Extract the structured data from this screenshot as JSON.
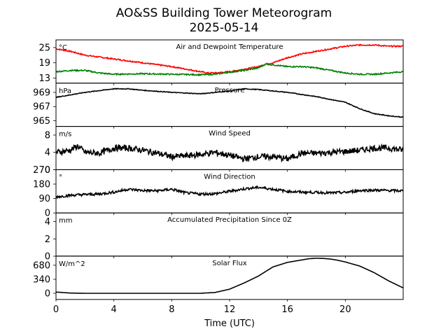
{
  "figure": {
    "title_line1": "AO&SS Building Tower Meteorogram",
    "title_line2": "2025-05-14",
    "xlabel": "Time (UTC)",
    "x_ticks": [
      0,
      4,
      8,
      12,
      16,
      20
    ],
    "xlim": [
      0,
      24
    ]
  },
  "chart_data": [
    {
      "type": "line",
      "title": "Air and Dewpoint Temperature",
      "unit_label": "°C",
      "ylim": [
        11,
        28
      ],
      "y_ticks": [
        13,
        19,
        25
      ],
      "series": [
        {
          "color": "#ff0000",
          "x": [
            0,
            1,
            2,
            4,
            6,
            8,
            9,
            10,
            10.5,
            11,
            12,
            13,
            14,
            14.5,
            15,
            16,
            17,
            18,
            19,
            20,
            21,
            22,
            23,
            24
          ],
          "y": [
            24.5,
            23.5,
            22,
            20.5,
            19,
            17.5,
            16.5,
            15.5,
            15,
            15,
            15.5,
            16.5,
            17.5,
            18.5,
            19,
            21,
            22.5,
            23.5,
            24.5,
            25.5,
            26,
            26,
            25.5,
            25.5
          ]
        },
        {
          "color": "#008000",
          "x": [
            0,
            1,
            2,
            3,
            4,
            6,
            8,
            10,
            11,
            12,
            13,
            14,
            14.5,
            15,
            16,
            17,
            18,
            19,
            20,
            21,
            22,
            23,
            24
          ],
          "y": [
            15.5,
            16,
            16,
            15,
            14.5,
            14.7,
            14.5,
            14.3,
            14.5,
            15.3,
            16,
            17,
            18.5,
            18.2,
            17.5,
            17.5,
            17,
            16,
            15,
            14.5,
            14.5,
            15,
            15.5
          ]
        }
      ],
      "noise": 0.25
    },
    {
      "type": "line",
      "title": "Pressure",
      "unit_label": "hPa",
      "ylim": [
        964.2,
        970.3
      ],
      "y_ticks": [
        965,
        967,
        969
      ],
      "series": [
        {
          "color": "#000000",
          "x": [
            0,
            2,
            4,
            5,
            6,
            8,
            10,
            12,
            13,
            14,
            15,
            16,
            17,
            18,
            19,
            20,
            21,
            22,
            23,
            24
          ],
          "y": [
            968.3,
            969,
            969.5,
            969.5,
            969.3,
            969,
            968.8,
            969.2,
            969.5,
            969.4,
            969.2,
            969,
            968.7,
            968.4,
            968,
            967.6,
            966.7,
            966,
            965.7,
            965.5
          ]
        }
      ],
      "noise": 0.05
    },
    {
      "type": "line",
      "title": "Wind Speed",
      "unit_label": "m/s",
      "ylim": [
        0,
        10
      ],
      "y_ticks": [
        0,
        4,
        8
      ],
      "series": [
        {
          "color": "#000000",
          "x": [
            0,
            1,
            1.5,
            2,
            3,
            4,
            5,
            6,
            7,
            8,
            9,
            10,
            11,
            12,
            13,
            14,
            15,
            16,
            17,
            18,
            19,
            20,
            21,
            22,
            23,
            24
          ],
          "y": [
            4,
            4.5,
            5.5,
            4,
            3.8,
            5,
            5,
            4.5,
            3.8,
            3,
            3.2,
            3.5,
            4,
            3.3,
            2.5,
            3,
            3,
            2.5,
            3.8,
            3.8,
            4,
            4.2,
            4.5,
            5,
            5,
            4.5
          ]
        }
      ],
      "noise": 0.7
    },
    {
      "type": "line",
      "title": "Wind Direction",
      "unit_label": "°",
      "ylim": [
        0,
        270
      ],
      "y_ticks": [
        0,
        90,
        180,
        270
      ],
      "series": [
        {
          "color": "#000000",
          "x": [
            0,
            1,
            2,
            3,
            4,
            5,
            6,
            7,
            8,
            9,
            10,
            11,
            12,
            13,
            14,
            15,
            16,
            17,
            18,
            19,
            20,
            21,
            22,
            23,
            24
          ],
          "y": [
            100,
            110,
            115,
            118,
            130,
            148,
            140,
            138,
            148,
            125,
            118,
            120,
            135,
            150,
            160,
            148,
            135,
            130,
            128,
            125,
            128,
            140,
            142,
            140,
            138
          ]
        }
      ],
      "noise": 8
    },
    {
      "type": "line",
      "title": "Accumulated Precipitation Since 0Z",
      "unit_label": "mm",
      "ylim": [
        0,
        5
      ],
      "y_ticks": [
        0,
        2,
        4
      ],
      "series": [
        {
          "color": "#000000",
          "x": [
            0,
            24
          ],
          "y": [
            0,
            0
          ]
        }
      ],
      "noise": 0
    },
    {
      "type": "line",
      "title": "Solar Flux",
      "unit_label": "W/m^2",
      "ylim": [
        -150,
        900
      ],
      "y_ticks": [
        0,
        340,
        680
      ],
      "series": [
        {
          "color": "#000000",
          "x": [
            0,
            1,
            2,
            10,
            11,
            12,
            13,
            14,
            15,
            16,
            17,
            17.5,
            18,
            18.5,
            19,
            19.5,
            20,
            21,
            22,
            23,
            24
          ],
          "y": [
            30,
            5,
            0,
            0,
            20,
            100,
            250,
            420,
            640,
            750,
            810,
            840,
            850,
            845,
            830,
            800,
            760,
            660,
            500,
            300,
            130
          ]
        }
      ],
      "noise": 0
    }
  ]
}
